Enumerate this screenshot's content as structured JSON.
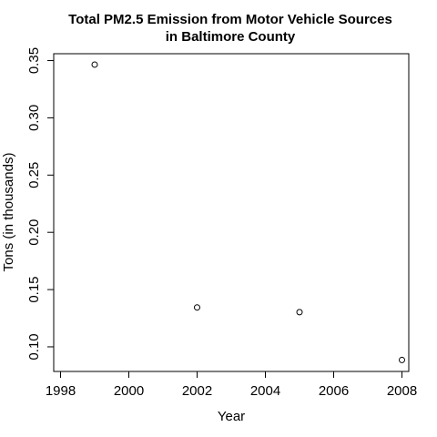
{
  "chart_data": {
    "type": "scatter",
    "title_lines": [
      "Total PM2.5 Emission from Motor Vehicle Sources",
      "in Baltimore County"
    ],
    "xlabel": "Year",
    "ylabel": "Tons (in thousands)",
    "xlim": [
      1997.8,
      2008.2
    ],
    "ylim": [
      0.0785,
      0.356
    ],
    "xticks": [
      "1998",
      "2000",
      "2002",
      "2004",
      "2006",
      "2008"
    ],
    "yticks": [
      "0.10",
      "0.15",
      "0.20",
      "0.25",
      "0.30",
      "0.35"
    ],
    "points": [
      {
        "x": 1999,
        "y": 0.3465
      },
      {
        "x": 2002,
        "y": 0.1344
      },
      {
        "x": 2005,
        "y": 0.1303
      },
      {
        "x": 2008,
        "y": 0.0885
      }
    ],
    "marker": "open-circle",
    "grid": false,
    "legend": "none"
  }
}
